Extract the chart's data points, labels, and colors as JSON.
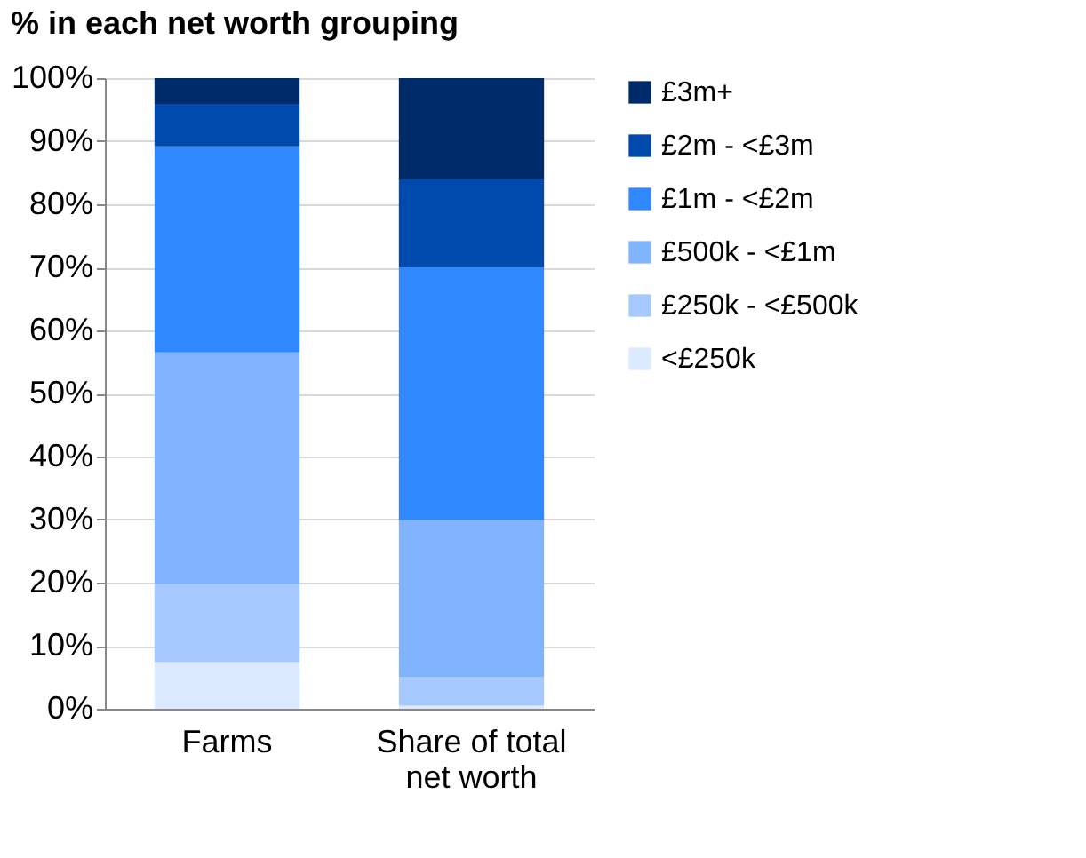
{
  "chart_data": {
    "type": "bar",
    "title": "% in each net worth grouping",
    "stacked": true,
    "categories": [
      "Farms",
      "Share of total net worth"
    ],
    "series": [
      {
        "name": "<£250k",
        "color": "#dceaff",
        "values": [
          7.4,
          0.5
        ]
      },
      {
        "name": "£250k - <£500k",
        "color": "#a6caff",
        "values": [
          12.4,
          4.5
        ]
      },
      {
        "name": "£500k - <£1m",
        "color": "#80b4ff",
        "values": [
          36.7,
          25.0
        ]
      },
      {
        "name": "£1m - <£2m",
        "color": "#3088ff",
        "values": [
          32.7,
          40.0
        ]
      },
      {
        "name": "£2m - <£3m",
        "color": "#004aad",
        "values": [
          6.7,
          14.0
        ]
      },
      {
        "name": "£3m+",
        "color": "#002b6b",
        "values": [
          4.1,
          16.0
        ]
      }
    ],
    "ylim": [
      0,
      100
    ],
    "yticks": [
      {
        "value": 0,
        "label": "0%"
      },
      {
        "value": 10,
        "label": "10%"
      },
      {
        "value": 20,
        "label": "20%"
      },
      {
        "value": 30,
        "label": "30%"
      },
      {
        "value": 40,
        "label": "40%"
      },
      {
        "value": 50,
        "label": "50%"
      },
      {
        "value": 60,
        "label": "60%"
      },
      {
        "value": 70,
        "label": "70%"
      },
      {
        "value": 80,
        "label": "80%"
      },
      {
        "value": 90,
        "label": "90%"
      },
      {
        "value": 100,
        "label": "100%"
      }
    ],
    "grid": "y",
    "legend": "right"
  }
}
